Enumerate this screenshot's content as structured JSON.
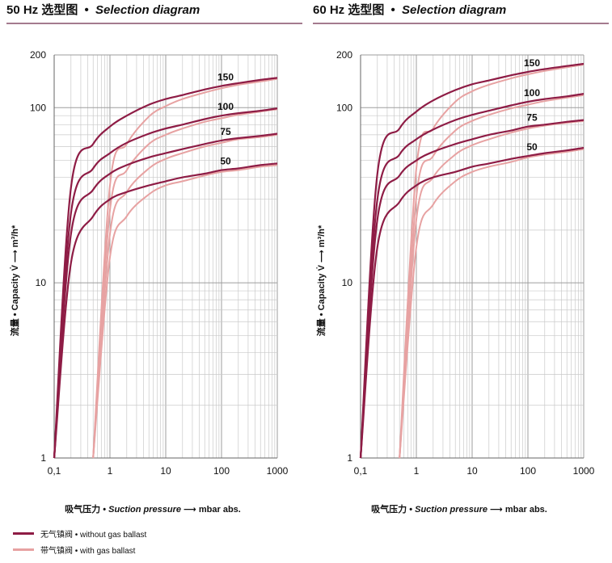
{
  "panels": {
    "left": {
      "title_cn": "50 Hz 选型图",
      "title_en": "Selection diagram"
    },
    "right": {
      "title_cn": "60 Hz 选型图",
      "title_en": "Selection diagram"
    }
  },
  "axis_text": {
    "y_title": "流量 • Capacity V̇ ⟶ m³/h*",
    "x_cn": "吸气压力",
    "x_en": "Suction pressure",
    "x_arrow": "⟶",
    "x_unit": "mbar abs."
  },
  "legend": {
    "without_gas_ballast": "无气镇阀 • without gas ballast",
    "with_gas_ballast": "带气镇阀 • with gas ballast"
  },
  "colors": {
    "without_gas_ballast": "#8e1c45",
    "with_gas_ballast": "#e7a2a2",
    "header_rule": "#a47a8e"
  },
  "chart_data": [
    {
      "type": "line",
      "panel": "left",
      "title": "50 Hz 选型图 • Selection diagram",
      "xlabel": "吸气压力 • Suction pressure ⟶ mbar abs.",
      "ylabel": "流量 • Capacity V̇ ⟶ m³/h*",
      "xscale": "log",
      "yscale": "log",
      "xlim": [
        0.1,
        1000
      ],
      "ylim": [
        1,
        200
      ],
      "x_ticks": [
        "0,1",
        "1",
        "10",
        "100",
        "1000"
      ],
      "y_ticks": [
        "1",
        "10",
        "100",
        "200"
      ],
      "x": [
        0.1,
        0.2,
        0.5,
        1,
        2,
        5,
        10,
        20,
        50,
        100,
        200,
        500,
        1000
      ],
      "series": [
        {
          "name": "150",
          "without": [
            1,
            35,
            62,
            78,
            90,
            104,
            112,
            118,
            127,
            133,
            138,
            144,
            148
          ],
          "with": [
            null,
            null,
            1,
            36,
            62,
            89,
            102,
            112,
            122,
            129,
            135,
            141,
            146
          ]
        },
        {
          "name": "100",
          "without": [
            1,
            25,
            45,
            55,
            63,
            71,
            76,
            80,
            86,
            90,
            93,
            96,
            99
          ],
          "with": [
            null,
            null,
            1,
            26,
            44,
            62,
            70,
            76,
            83,
            87,
            91,
            95,
            98
          ]
        },
        {
          "name": "75",
          "without": [
            1,
            19,
            34,
            42,
            47,
            52,
            55,
            58,
            62,
            65,
            67,
            69,
            71
          ],
          "with": [
            null,
            null,
            1,
            19,
            33,
            45,
            51,
            55,
            60,
            63,
            66,
            68,
            70
          ]
        },
        {
          "name": "50",
          "without": [
            1,
            13,
            24,
            30,
            33,
            36,
            38,
            40,
            42,
            44,
            45,
            47,
            48
          ],
          "with": [
            null,
            null,
            1,
            14,
            24,
            32,
            36,
            38,
            41,
            43,
            44,
            46,
            47
          ]
        }
      ]
    },
    {
      "type": "line",
      "panel": "right",
      "title": "60 Hz 选型图 • Selection diagram",
      "xlabel": "吸气压力 • Suction pressure ⟶ mbar abs.",
      "ylabel": "流量 • Capacity V̇ ⟶ m³/h*",
      "xscale": "log",
      "yscale": "log",
      "xlim": [
        0.1,
        1000
      ],
      "ylim": [
        1,
        200
      ],
      "x_ticks": [
        "0,1",
        "1",
        "10",
        "100",
        "1000"
      ],
      "y_ticks": [
        "1",
        "10",
        "100",
        "200"
      ],
      "x": [
        0.1,
        0.2,
        0.5,
        1,
        2,
        5,
        10,
        20,
        50,
        100,
        200,
        500,
        1000
      ],
      "series": [
        {
          "name": "150",
          "without": [
            1,
            42,
            76,
            95,
            110,
            126,
            136,
            143,
            153,
            160,
            166,
            173,
            178
          ],
          "with": [
            null,
            null,
            1,
            45,
            76,
            108,
            124,
            135,
            147,
            155,
            162,
            170,
            176
          ]
        },
        {
          "name": "100",
          "without": [
            1,
            30,
            54,
            66,
            75,
            85,
            91,
            96,
            103,
            108,
            112,
            116,
            120
          ],
          "with": [
            null,
            null,
            1,
            31,
            53,
            74,
            84,
            91,
            99,
            104,
            109,
            114,
            118
          ]
        },
        {
          "name": "75",
          "without": [
            1,
            23,
            41,
            50,
            56,
            62,
            66,
            70,
            74,
            78,
            80,
            83,
            85
          ],
          "with": [
            null,
            null,
            1,
            23,
            40,
            54,
            61,
            66,
            72,
            76,
            79,
            82,
            84
          ]
        },
        {
          "name": "50",
          "without": [
            1,
            16,
            29,
            36,
            40,
            43,
            46,
            48,
            51,
            53,
            55,
            57,
            59
          ],
          "with": [
            null,
            null,
            1,
            16,
            28,
            38,
            43,
            46,
            49,
            52,
            54,
            56,
            58
          ]
        }
      ]
    }
  ]
}
